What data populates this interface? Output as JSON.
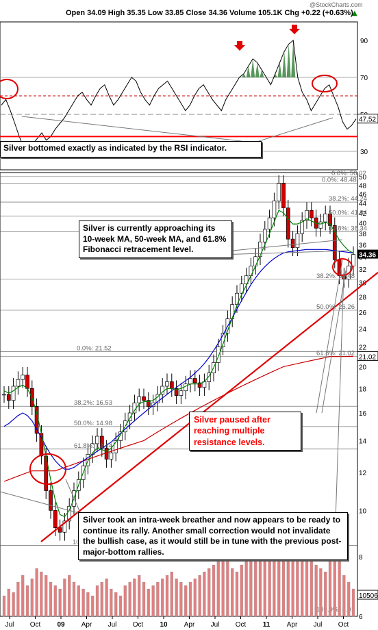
{
  "header": {
    "watermark": "@StockCharts.com",
    "ohlc": "Open 34.09  High 35.35  Low 33.85  Close 34.36  Volume 105.1K  Chg +0.22 (+0.63%)",
    "change_arrow": "▲"
  },
  "annotations": {
    "rsi_note": "Silver bottomed exactly as indicated by the RSI indicator.",
    "fib_note": "Silver is currently approaching its 10-week MA, 50-week MA, and 61.8% Fibonacci retracement level.",
    "resistance_note": "Silver paused after reaching multiple resistance levels.",
    "breather_note": "Silver took an intra-week breather and now appears to be ready to continue its rally. Another small correction would not invalidate the bullish case, as it would still be in tune with the previous post-major-bottom rallies."
  },
  "colors": {
    "rsi_line": "#000000",
    "rsi_overbought_fill": "#2e7d32",
    "support_line": "#ff0000",
    "ma_short": "#008000",
    "ma_mid": "#0000cc",
    "ma_long": "#cc0000",
    "candle_up": "#ffffff",
    "candle_down": "#cc0000",
    "volume_bar": "#e08080",
    "annotation_red_text": "#ff0000"
  },
  "chart_data": [
    {
      "type": "line",
      "title": "",
      "ylim": [
        20,
        100
      ],
      "y_ticks": [
        30,
        50,
        70,
        90
      ],
      "reference_levels": [
        30,
        50,
        60,
        70
      ],
      "last_value_label": "47.52",
      "values": [
        55,
        58,
        52,
        45,
        38,
        32,
        30,
        34,
        37,
        40,
        36,
        38,
        42,
        45,
        48,
        52,
        56,
        60,
        62,
        58,
        55,
        60,
        64,
        66,
        60,
        55,
        58,
        62,
        66,
        70,
        68,
        62,
        58,
        55,
        60,
        64,
        66,
        68,
        64,
        60,
        56,
        52,
        55,
        60,
        64,
        66,
        62,
        58,
        55,
        52,
        58,
        62,
        66,
        70,
        72,
        76,
        80,
        78,
        74,
        70,
        66,
        72,
        78,
        84,
        88,
        90,
        70,
        62,
        58,
        52,
        56,
        60,
        64,
        66,
        60,
        54,
        46,
        42,
        44,
        47.52
      ]
    },
    {
      "type": "candlestick",
      "title": "",
      "ylim": [
        6,
        50
      ],
      "scale": "log",
      "y_ticks": [
        6,
        8,
        10,
        12,
        14,
        16,
        18,
        20,
        22,
        24,
        26,
        28,
        30,
        32,
        34,
        36,
        38,
        40,
        42,
        44,
        46,
        48,
        50
      ],
      "x_ticks": [
        "Jul",
        "Oct",
        "09",
        "Apr",
        "Jul",
        "Oct",
        "10",
        "Apr",
        "Jul",
        "Oct",
        "11",
        "Apr",
        "Jul",
        "Oct"
      ],
      "last_price_label": "34.36",
      "last_value_labels": [
        "34.36",
        "21.02",
        "10506"
      ],
      "fib_labels": [
        {
          "text": "0.0%: 50.02",
          "value": 50.02
        },
        {
          "text": "0.0%: 48.48",
          "value": 48.48
        },
        {
          "text": "38.2%: 44.24",
          "value": 44.24
        },
        {
          "text": "50.0%: 41.34",
          "value": 41.34
        },
        {
          "text": "61.8%: 38.34",
          "value": 38.34
        },
        {
          "text": "38.2%: 30.48",
          "value": 30.48
        },
        {
          "text": "50.0%: 26.26",
          "value": 26.26
        },
        {
          "text": "61.8%: 21.02",
          "value": 21.02
        },
        {
          "text": "0.0%: 21.52",
          "value": 21.52
        },
        {
          "text": "38.2%: 16.53",
          "value": 16.53
        },
        {
          "text": "50.0%: 14.98",
          "value": 14.98
        },
        {
          "text": "61.8%: 13.44",
          "value": 13.44
        },
        {
          "text": "100.0%: 8.45",
          "value": 8.45
        },
        {
          "text": "100.0%: 4.01",
          "value": 4.01
        }
      ],
      "close": [
        17.5,
        17.0,
        18.2,
        18.8,
        19.2,
        18.0,
        16.5,
        14.5,
        13.0,
        11.0,
        10.0,
        9.2,
        9.0,
        9.5,
        10.2,
        11.0,
        11.6,
        12.4,
        13.1,
        13.8,
        14.3,
        13.5,
        12.8,
        13.2,
        14.0,
        14.6,
        15.4,
        16.0,
        16.8,
        17.3,
        17.0,
        16.5,
        16.8,
        17.5,
        18.2,
        18.6,
        18.0,
        17.4,
        17.8,
        18.4,
        18.9,
        18.5,
        18.1,
        18.6,
        19.4,
        20.4,
        22.0,
        23.5,
        25.2,
        27.0,
        28.5,
        29.8,
        31.0,
        32.5,
        34.0,
        36.5,
        38.8,
        41.0,
        44.5,
        48.4,
        43.0,
        37.0,
        35.5,
        38.0,
        40.5,
        42.5,
        41.0,
        39.0,
        40.2,
        41.8,
        39.5,
        33.5,
        31.0,
        30.5,
        32.5,
        34.36
      ],
      "ma10": [
        17.8,
        17.6,
        17.8,
        18.1,
        18.3,
        18.0,
        17.2,
        16.0,
        14.5,
        13.0,
        11.6,
        10.5,
        9.8,
        9.7,
        10.0,
        10.6,
        11.3,
        12.0,
        12.7,
        13.2,
        13.5,
        13.4,
        13.3,
        13.5,
        13.9,
        14.4,
        15.0,
        15.6,
        16.2,
        16.7,
        16.9,
        16.9,
        17.0,
        17.3,
        17.7,
        18.0,
        18.0,
        17.9,
        18.0,
        18.2,
        18.4,
        18.4,
        18.4,
        18.6,
        19.1,
        19.9,
        21.0,
        22.3,
        23.8,
        25.3,
        26.9,
        28.3,
        29.6,
        31.0,
        32.5,
        34.2,
        36.0,
        38.0,
        40.2,
        42.5,
        42.0,
        40.8,
        39.8,
        39.8,
        40.2,
        40.8,
        40.4,
        39.9,
        39.8,
        40.1,
        39.8,
        38.3,
        36.8,
        35.8,
        35.0,
        34.6
      ],
      "ma50": [
        15.0,
        15.2,
        15.5,
        15.8,
        16.0,
        15.8,
        15.4,
        14.8,
        14.2,
        13.6,
        13.1,
        12.7,
        12.4,
        12.2,
        12.2,
        12.3,
        12.5,
        12.7,
        12.9,
        13.1,
        13.3,
        13.5,
        13.7,
        13.9,
        14.2,
        14.5,
        14.8,
        15.1,
        15.4,
        15.7,
        16.0,
        16.3,
        16.6,
        16.9,
        17.2,
        17.5,
        17.8,
        18.1,
        18.4,
        18.7,
        19.0,
        19.4,
        19.8,
        20.3,
        20.9,
        21.6,
        22.4,
        23.3,
        24.3,
        25.3,
        26.4,
        27.5,
        28.6,
        29.7,
        30.7,
        31.6,
        32.4,
        33.1,
        33.7,
        34.2,
        34.6,
        34.8,
        34.9,
        35.0,
        35.1,
        35.2,
        35.2,
        35.2,
        35.2,
        35.2,
        35.1,
        35.0,
        34.9,
        34.8,
        34.7,
        34.6
      ],
      "ma200": [
        11.5,
        11.6,
        11.7,
        11.8,
        11.9,
        12.0,
        12.1,
        12.1,
        12.1,
        12.1,
        12.1,
        12.1,
        12.2,
        12.3,
        12.4,
        12.5,
        12.6,
        12.7,
        12.8,
        12.9,
        13.0,
        13.1,
        13.2,
        13.3,
        13.4,
        13.5,
        13.6,
        13.7,
        13.8,
        13.9,
        14.0,
        14.2,
        14.4,
        14.6,
        14.8,
        15.0,
        15.2,
        15.4,
        15.6,
        15.8,
        16.0,
        16.2,
        16.4,
        16.6,
        16.8,
        17.0,
        17.2,
        17.4,
        17.6,
        17.8,
        18.0,
        18.2,
        18.4,
        18.6,
        18.8,
        19.0,
        19.2,
        19.4,
        19.6,
        19.8,
        20.0,
        20.1,
        20.2,
        20.3,
        20.4,
        20.5,
        20.6,
        20.7,
        20.8,
        20.9,
        21.0,
        21.0,
        21.0,
        21.0,
        21.02,
        21.02
      ]
    },
    {
      "type": "bar",
      "title": "",
      "values": [
        30,
        40,
        35,
        50,
        60,
        45,
        55,
        70,
        65,
        60,
        50,
        45,
        40,
        55,
        60,
        50,
        45,
        40,
        35,
        30,
        45,
        50,
        55,
        40,
        35,
        30,
        45,
        50,
        55,
        60,
        50,
        40,
        45,
        50,
        55,
        60,
        65,
        55,
        50,
        45,
        50,
        55,
        60,
        65,
        70,
        75,
        80,
        85,
        90,
        70,
        65,
        75,
        80,
        85,
        95,
        100,
        110,
        105,
        120,
        150,
        130,
        115,
        100,
        95,
        90,
        85,
        80,
        75,
        70,
        65,
        90,
        100,
        80,
        60,
        50,
        40
      ],
      "last_value_label": "10506"
    }
  ]
}
